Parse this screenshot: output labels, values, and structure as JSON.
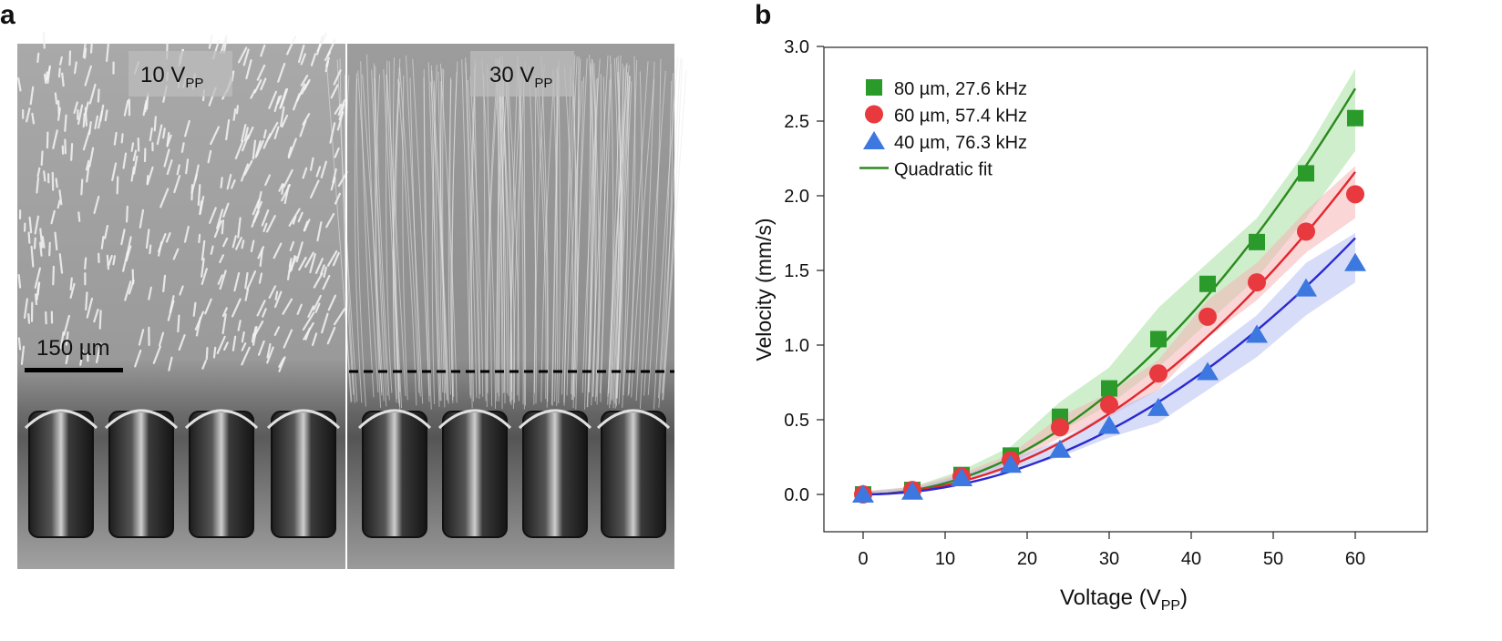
{
  "panels": {
    "a": {
      "letter": "a",
      "left_label": {
        "main": "10 V",
        "sub": "PP"
      },
      "right_label": {
        "main": "30 V",
        "sub": "PP"
      },
      "scale_bar_label": "150 µm"
    },
    "b": {
      "letter": "b"
    }
  },
  "chart_data": {
    "type": "scatter",
    "title": "",
    "xlabel_main": "Voltage (V",
    "xlabel_sub": "PP",
    "xlabel_end": ")",
    "ylabel": "Velocity (mm/s)",
    "xlim": [
      -5,
      70
    ],
    "ylim": [
      -0.22,
      3.0
    ],
    "xticks": [
      0,
      10,
      20,
      30,
      40,
      50,
      60
    ],
    "yticks": [
      0.0,
      0.5,
      1.0,
      1.5,
      2.0,
      2.5,
      3.0
    ],
    "ytick_labels": [
      "0.0",
      "0.5",
      "1.0",
      "1.5",
      "2.0",
      "2.5",
      "3.0"
    ],
    "legend_position": "top-left",
    "legend_fit_label": "Quadratic fit",
    "x": [
      0,
      6,
      12,
      18,
      24,
      30,
      36,
      42,
      48,
      54,
      60
    ],
    "series": [
      {
        "name": "80 µm, 27.6 kHz",
        "marker": "square",
        "color": "#2a9a2a",
        "fit_color": "#2a8a1e",
        "band_color": "#a8e0a0",
        "values": [
          0.0,
          0.03,
          0.13,
          0.26,
          0.52,
          0.71,
          1.04,
          1.41,
          1.69,
          2.15,
          2.52
        ],
        "band_low": [
          0.0,
          0.02,
          0.11,
          0.22,
          0.42,
          0.6,
          0.85,
          1.15,
          1.45,
          1.85,
          2.3
        ],
        "band_high": [
          0.02,
          0.05,
          0.16,
          0.32,
          0.62,
          0.85,
          1.25,
          1.55,
          1.85,
          2.3,
          2.85
        ],
        "fit_a": 0.000755
      },
      {
        "name": "60 µm, 57.4 kHz",
        "marker": "circle",
        "color": "#e8393e",
        "fit_color": "#e3262c",
        "band_color": "#f5b4b6",
        "values": [
          0.0,
          0.03,
          0.12,
          0.23,
          0.45,
          0.6,
          0.81,
          1.19,
          1.42,
          1.76,
          2.01
        ],
        "band_low": [
          0.0,
          0.02,
          0.1,
          0.2,
          0.38,
          0.52,
          0.7,
          1.05,
          1.3,
          1.62,
          1.85
        ],
        "band_high": [
          0.02,
          0.05,
          0.14,
          0.27,
          0.52,
          0.68,
          0.9,
          1.3,
          1.55,
          1.9,
          2.2
        ],
        "fit_a": 0.0006
      },
      {
        "name": "40 µm, 76.3 kHz",
        "marker": "triangle",
        "color": "#3d78e0",
        "fit_color": "#2a2ad0",
        "band_color": "#b6bff2",
        "values": [
          0.0,
          0.02,
          0.11,
          0.2,
          0.3,
          0.46,
          0.58,
          0.82,
          1.07,
          1.38,
          1.55
        ],
        "band_low": [
          0.0,
          0.01,
          0.09,
          0.16,
          0.25,
          0.38,
          0.48,
          0.7,
          0.92,
          1.2,
          1.42
        ],
        "band_high": [
          0.02,
          0.04,
          0.13,
          0.24,
          0.36,
          0.55,
          0.7,
          0.95,
          1.2,
          1.55,
          1.75
        ],
        "fit_a": 0.000477
      }
    ]
  }
}
